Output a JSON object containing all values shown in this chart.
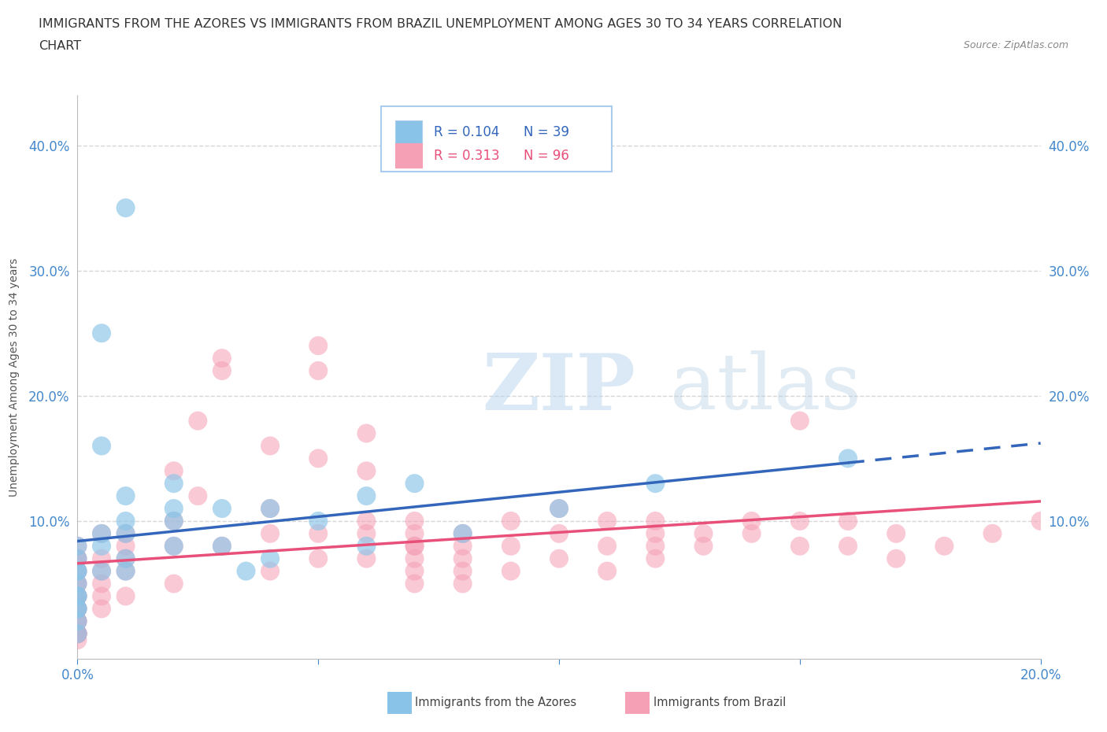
{
  "title_line1": "IMMIGRANTS FROM THE AZORES VS IMMIGRANTS FROM BRAZIL UNEMPLOYMENT AMONG AGES 30 TO 34 YEARS CORRELATION",
  "title_line2": "CHART",
  "source_text": "Source: ZipAtlas.com",
  "ylabel": "Unemployment Among Ages 30 to 34 years",
  "xlim": [
    0.0,
    0.2
  ],
  "ylim": [
    -0.01,
    0.44
  ],
  "xticks": [
    0.0,
    0.05,
    0.1,
    0.15,
    0.2
  ],
  "yticks": [
    0.0,
    0.1,
    0.2,
    0.3,
    0.4
  ],
  "background_color": "#ffffff",
  "grid_color": "#cccccc",
  "azores_color": "#89c4e8",
  "brazil_color": "#f5a0b5",
  "azores_line_color": "#3366bb",
  "brazil_line_color": "#e8507a",
  "R_azores": 0.104,
  "N_azores": 39,
  "R_brazil": 0.313,
  "N_brazil": 96,
  "title_fontsize": 11.5,
  "axis_label_fontsize": 10,
  "tick_fontsize": 12,
  "tick_color": "#4488cc",
  "watermark_zip": "ZIP",
  "watermark_atlas": "atlas",
  "azores_x": [
    0.005,
    0.01,
    0.005,
    0.005,
    0.0,
    0.0,
    0.0,
    0.0,
    0.0,
    0.0,
    0.0,
    0.0,
    0.0,
    0.0,
    0.0,
    0.005,
    0.005,
    0.01,
    0.01,
    0.01,
    0.01,
    0.01,
    0.02,
    0.02,
    0.02,
    0.02,
    0.03,
    0.03,
    0.035,
    0.04,
    0.04,
    0.05,
    0.06,
    0.06,
    0.07,
    0.08,
    0.1,
    0.12,
    0.16
  ],
  "azores_y": [
    0.06,
    0.35,
    0.25,
    0.16,
    0.08,
    0.07,
    0.06,
    0.06,
    0.05,
    0.04,
    0.04,
    0.03,
    0.03,
    0.02,
    0.01,
    0.09,
    0.08,
    0.12,
    0.1,
    0.09,
    0.07,
    0.06,
    0.13,
    0.11,
    0.1,
    0.08,
    0.11,
    0.08,
    0.06,
    0.11,
    0.07,
    0.1,
    0.12,
    0.08,
    0.13,
    0.09,
    0.11,
    0.13,
    0.15
  ],
  "brazil_x": [
    0.0,
    0.0,
    0.0,
    0.0,
    0.0,
    0.0,
    0.0,
    0.0,
    0.0,
    0.0,
    0.0,
    0.0,
    0.0,
    0.0,
    0.0,
    0.0,
    0.0,
    0.0,
    0.0,
    0.0,
    0.0,
    0.0,
    0.0,
    0.005,
    0.005,
    0.005,
    0.005,
    0.005,
    0.005,
    0.01,
    0.01,
    0.01,
    0.01,
    0.01,
    0.02,
    0.02,
    0.02,
    0.02,
    0.025,
    0.025,
    0.03,
    0.03,
    0.03,
    0.04,
    0.04,
    0.04,
    0.04,
    0.05,
    0.05,
    0.05,
    0.05,
    0.05,
    0.06,
    0.06,
    0.06,
    0.06,
    0.06,
    0.07,
    0.07,
    0.07,
    0.07,
    0.07,
    0.07,
    0.07,
    0.08,
    0.08,
    0.08,
    0.08,
    0.08,
    0.09,
    0.09,
    0.09,
    0.1,
    0.1,
    0.1,
    0.11,
    0.11,
    0.11,
    0.12,
    0.12,
    0.12,
    0.12,
    0.13,
    0.13,
    0.14,
    0.14,
    0.15,
    0.15,
    0.15,
    0.16,
    0.16,
    0.17,
    0.17,
    0.18,
    0.19,
    0.2
  ],
  "brazil_y": [
    0.08,
    0.07,
    0.07,
    0.06,
    0.06,
    0.05,
    0.05,
    0.04,
    0.04,
    0.04,
    0.03,
    0.03,
    0.03,
    0.02,
    0.02,
    0.02,
    0.01,
    0.01,
    0.01,
    0.01,
    0.01,
    0.01,
    0.005,
    0.09,
    0.07,
    0.06,
    0.05,
    0.04,
    0.03,
    0.09,
    0.08,
    0.07,
    0.06,
    0.04,
    0.14,
    0.1,
    0.08,
    0.05,
    0.18,
    0.12,
    0.23,
    0.22,
    0.08,
    0.16,
    0.11,
    0.09,
    0.06,
    0.24,
    0.22,
    0.15,
    0.09,
    0.07,
    0.17,
    0.14,
    0.1,
    0.09,
    0.07,
    0.1,
    0.09,
    0.08,
    0.08,
    0.07,
    0.06,
    0.05,
    0.09,
    0.08,
    0.07,
    0.06,
    0.05,
    0.1,
    0.08,
    0.06,
    0.11,
    0.09,
    0.07,
    0.1,
    0.08,
    0.06,
    0.1,
    0.09,
    0.08,
    0.07,
    0.09,
    0.08,
    0.1,
    0.09,
    0.18,
    0.1,
    0.08,
    0.1,
    0.08,
    0.09,
    0.07,
    0.08,
    0.09,
    0.1
  ]
}
